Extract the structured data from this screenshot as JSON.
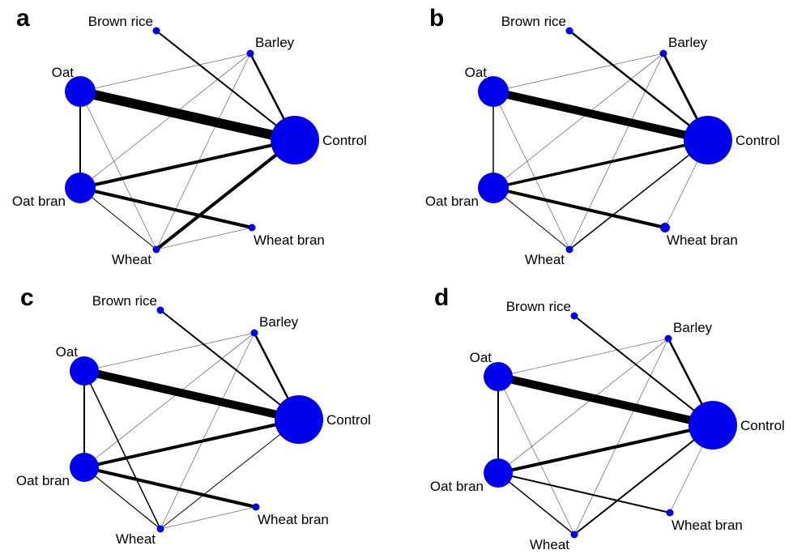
{
  "node_color": "#0000ee",
  "edge_color": "#000000",
  "nodes": [
    {
      "id": "brown_rice",
      "label": "Brown rice"
    },
    {
      "id": "barley",
      "label": "Barley"
    },
    {
      "id": "oat",
      "label": "Oat"
    },
    {
      "id": "control",
      "label": "Control"
    },
    {
      "id": "oat_bran",
      "label": "Oat bran"
    },
    {
      "id": "wheat_bran",
      "label": "Wheat bran"
    },
    {
      "id": "wheat",
      "label": "Wheat"
    }
  ],
  "panels": [
    {
      "letter": "a",
      "node_sizes": {
        "brown_rice": 1,
        "barley": 1,
        "oat": 3,
        "control": 5,
        "oat_bran": 3,
        "wheat_bran": 1,
        "wheat": 1
      },
      "edges": [
        {
          "from": "oat",
          "to": "control",
          "weight": 12
        },
        {
          "from": "oat_bran",
          "to": "control",
          "weight": 4
        },
        {
          "from": "wheat",
          "to": "control",
          "weight": 4
        },
        {
          "from": "oat_bran",
          "to": "wheat_bran",
          "weight": 4
        },
        {
          "from": "barley",
          "to": "control",
          "weight": 2.5
        },
        {
          "from": "brown_rice",
          "to": "control",
          "weight": 2
        },
        {
          "from": "oat",
          "to": "oat_bran",
          "weight": 2
        },
        {
          "from": "oat_bran",
          "to": "wheat",
          "weight": 1
        },
        {
          "from": "oat",
          "to": "barley",
          "weight": 0.8
        },
        {
          "from": "oat",
          "to": "wheat",
          "weight": 0.8
        },
        {
          "from": "barley",
          "to": "wheat",
          "weight": 0.8
        },
        {
          "from": "oat_bran",
          "to": "barley",
          "weight": 0.8
        },
        {
          "from": "wheat",
          "to": "wheat_bran",
          "weight": 0.8
        }
      ]
    },
    {
      "letter": "b",
      "node_sizes": {
        "brown_rice": 1,
        "barley": 1,
        "oat": 3,
        "control": 5,
        "oat_bran": 3,
        "wheat_bran": 1.5,
        "wheat": 1
      },
      "edges": [
        {
          "from": "oat",
          "to": "control",
          "weight": 10
        },
        {
          "from": "oat_bran",
          "to": "control",
          "weight": 3.5
        },
        {
          "from": "oat_bran",
          "to": "wheat_bran",
          "weight": 4
        },
        {
          "from": "barley",
          "to": "control",
          "weight": 3
        },
        {
          "from": "brown_rice",
          "to": "control",
          "weight": 2.5
        },
        {
          "from": "wheat",
          "to": "control",
          "weight": 1.5
        },
        {
          "from": "oat",
          "to": "oat_bran",
          "weight": 1.5
        },
        {
          "from": "oat_bran",
          "to": "wheat",
          "weight": 1
        },
        {
          "from": "oat",
          "to": "barley",
          "weight": 0.8
        },
        {
          "from": "oat",
          "to": "wheat",
          "weight": 0.8
        },
        {
          "from": "barley",
          "to": "wheat",
          "weight": 0.8
        },
        {
          "from": "oat_bran",
          "to": "barley",
          "weight": 0.8
        },
        {
          "from": "wheat_bran",
          "to": "control",
          "weight": 0.8
        }
      ]
    },
    {
      "letter": "c",
      "node_sizes": {
        "brown_rice": 1,
        "barley": 1,
        "oat": 2.5,
        "control": 5,
        "oat_bran": 2.5,
        "wheat_bran": 1,
        "wheat": 1
      },
      "edges": [
        {
          "from": "oat",
          "to": "control",
          "weight": 10
        },
        {
          "from": "oat_bran",
          "to": "control",
          "weight": 4
        },
        {
          "from": "oat_bran",
          "to": "wheat_bran",
          "weight": 4
        },
        {
          "from": "barley",
          "to": "control",
          "weight": 2.5
        },
        {
          "from": "brown_rice",
          "to": "control",
          "weight": 2
        },
        {
          "from": "oat",
          "to": "oat_bran",
          "weight": 2
        },
        {
          "from": "oat",
          "to": "wheat",
          "weight": 1.5
        },
        {
          "from": "oat_bran",
          "to": "wheat",
          "weight": 1.2
        },
        {
          "from": "wheat",
          "to": "control",
          "weight": 1
        },
        {
          "from": "oat",
          "to": "barley",
          "weight": 0.8
        },
        {
          "from": "barley",
          "to": "wheat",
          "weight": 0.8
        },
        {
          "from": "wheat",
          "to": "wheat_bran",
          "weight": 0.8
        },
        {
          "from": "oat_bran",
          "to": "barley",
          "weight": 0.8
        }
      ]
    },
    {
      "letter": "d",
      "node_sizes": {
        "brown_rice": 1,
        "barley": 1,
        "oat": 2.5,
        "control": 5,
        "oat_bran": 2.5,
        "wheat_bran": 1,
        "wheat": 1
      },
      "edges": [
        {
          "from": "oat",
          "to": "control",
          "weight": 10
        },
        {
          "from": "oat_bran",
          "to": "control",
          "weight": 4
        },
        {
          "from": "oat_bran",
          "to": "wheat_bran",
          "weight": 2
        },
        {
          "from": "barley",
          "to": "control",
          "weight": 2.5
        },
        {
          "from": "brown_rice",
          "to": "control",
          "weight": 2
        },
        {
          "from": "oat",
          "to": "oat_bran",
          "weight": 2
        },
        {
          "from": "wheat",
          "to": "control",
          "weight": 2
        },
        {
          "from": "oat_bran",
          "to": "wheat",
          "weight": 1.5
        },
        {
          "from": "oat",
          "to": "barley",
          "weight": 0.8
        },
        {
          "from": "oat",
          "to": "wheat",
          "weight": 0.8
        },
        {
          "from": "barley",
          "to": "wheat",
          "weight": 0.8
        },
        {
          "from": "wheat_bran",
          "to": "control",
          "weight": 0.8
        },
        {
          "from": "oat_bran",
          "to": "barley",
          "weight": 0.8
        }
      ]
    }
  ]
}
